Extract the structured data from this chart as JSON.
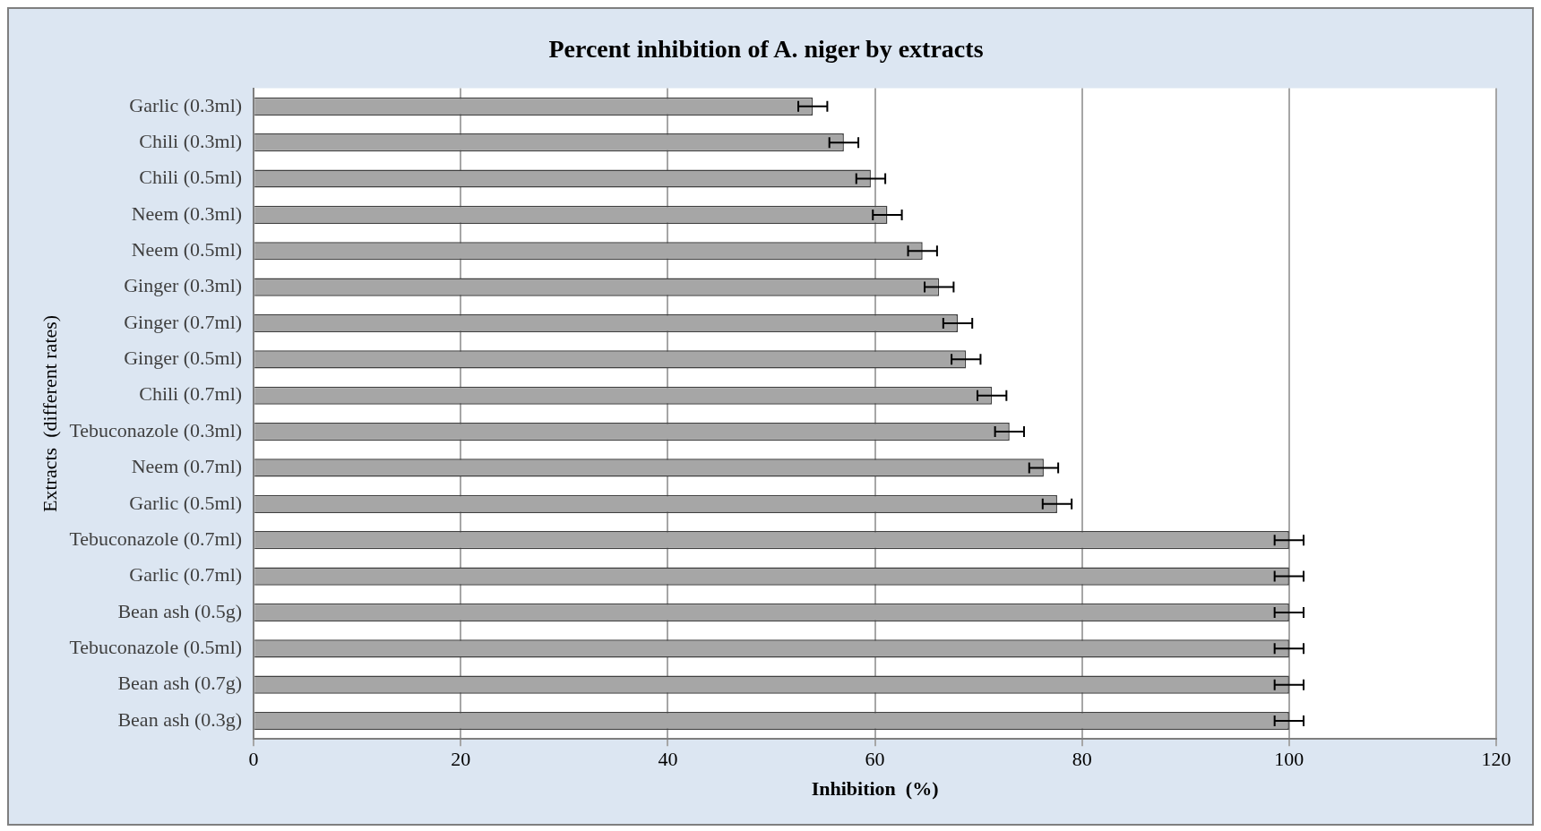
{
  "chart_data": {
    "type": "bar",
    "orientation": "horizontal",
    "title": "Percent inhibition of A. niger by extracts",
    "xlabel": "Inhibition  (%)",
    "ylabel": "Extracts  (different rates)",
    "categories": [
      "Garlic (0.3ml)",
      "Chili (0.3ml)",
      "Chili (0.5ml)",
      "Neem (0.3ml)",
      "Neem (0.5ml)",
      "Ginger (0.3ml)",
      "Ginger (0.7ml)",
      "Ginger (0.5ml)",
      "Chili (0.7ml)",
      "Tebuconazole (0.3ml)",
      "Neem (0.7ml)",
      "Garlic (0.5ml)",
      "Tebuconazole (0.7ml)",
      "Garlic (0.7ml)",
      "Bean ash (0.5g)",
      "Tebuconazole (0.5ml)",
      "Bean ash (0.7g)",
      "Bean ash (0.3g)"
    ],
    "values": [
      54,
      57,
      59.6,
      61.2,
      64.6,
      66.2,
      68,
      68.8,
      71.3,
      73,
      76.3,
      77.6,
      100,
      100,
      100,
      100,
      100,
      100
    ],
    "errors": [
      1.4,
      1.4,
      1.4,
      1.4,
      1.4,
      1.4,
      1.4,
      1.4,
      1.4,
      1.4,
      1.4,
      1.4,
      1.4,
      1.4,
      1.4,
      1.4,
      1.4,
      1.4
    ],
    "color": "#a6a6a6",
    "xlim": [
      0,
      120
    ],
    "xticks": [
      0,
      20,
      40,
      60,
      80,
      100,
      120
    ],
    "grid": "x",
    "legend": false
  }
}
